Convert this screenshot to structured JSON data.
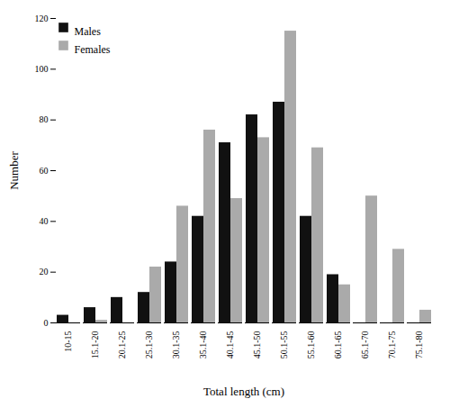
{
  "chart_data": {
    "type": "bar",
    "categories": [
      "10-15",
      "15.1-20",
      "20.1-25",
      "25.1-30",
      "30.1-35",
      "35.1-40",
      "40.1-45",
      "45.1-50",
      "50.1-55",
      "55.1-60",
      "60.1-65",
      "65.1-70",
      "70.1-75",
      "75.1-80"
    ],
    "series": [
      {
        "name": "Males",
        "color": "#111111",
        "values": [
          3,
          6,
          10,
          12,
          24,
          42,
          71,
          82,
          87,
          42,
          19,
          0,
          0,
          0
        ]
      },
      {
        "name": "Females",
        "color": "#aaaaaa",
        "values": [
          0,
          1,
          0,
          22,
          46,
          76,
          49,
          73,
          115,
          69,
          15,
          50,
          29,
          5
        ]
      }
    ],
    "xlabel": "Total length (cm)",
    "ylabel": "Number",
    "ylim": [
      0,
      120
    ],
    "yticks": [
      0,
      20,
      40,
      60,
      80,
      100,
      120
    ],
    "legend": "upper left",
    "grid": false
  }
}
